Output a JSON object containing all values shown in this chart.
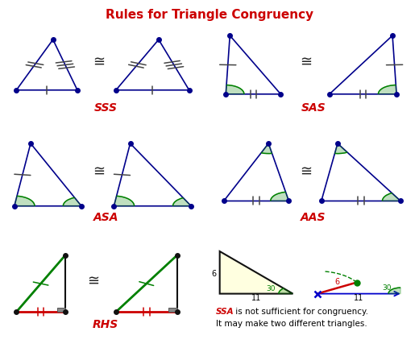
{
  "title": "Rules for Triangle Congruency",
  "title_color": "#CC0000",
  "title_fontsize": 11,
  "background_color": "#ffffff",
  "cell_bg": "#ddeeff",
  "congruence_symbol": "≅",
  "label_color": "#CC0000",
  "ssa_text1_part1": "SSA",
  "ssa_text1_part2": " is not sufficient for congruency.",
  "ssa_text2": "It may make two different triangles.",
  "node_color_blue": "#00008B",
  "node_color_black": "#111111",
  "tick_color": "#444444",
  "green_color": "#008000",
  "red_color": "#CC0000",
  "blue_color": "#0000CC",
  "gray_color": "#555555"
}
